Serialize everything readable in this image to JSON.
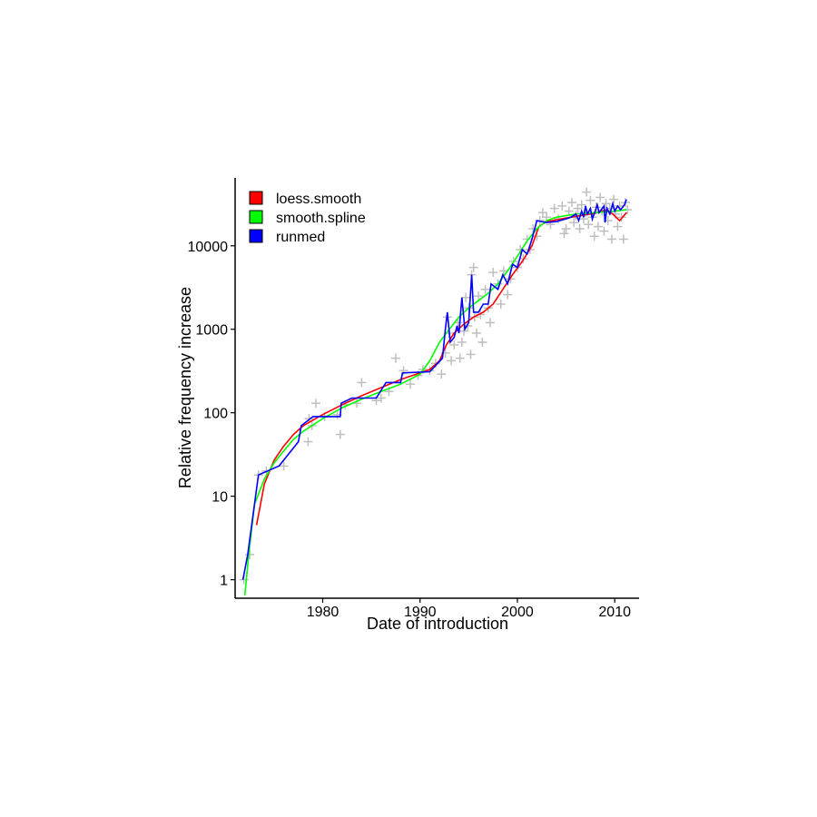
{
  "chart_data": {
    "type": "line",
    "title": "",
    "xlabel": "Date of introduction",
    "ylabel": "Relative frequency increase",
    "xlim": [
      1971,
      2012.5
    ],
    "ylim": [
      0.6,
      65000
    ],
    "y_scale": "log",
    "x_ticks": [
      1980,
      1990,
      2000,
      2010
    ],
    "x_tick_labels": [
      "1980",
      "1990",
      "2000",
      "2010"
    ],
    "y_ticks": [
      1,
      10,
      100,
      1000,
      10000
    ],
    "y_tick_labels": [
      "1",
      "10",
      "100",
      "1000",
      "10000"
    ],
    "grid": false,
    "legend_position": "top-left",
    "point_color": "#bebebe",
    "scatter_points": [
      [
        1971.9,
        1.0
      ],
      [
        1972.5,
        2.0
      ],
      [
        1973.4,
        18
      ],
      [
        1974.2,
        20
      ],
      [
        1976.0,
        23
      ],
      [
        1978.5,
        45
      ],
      [
        1978.6,
        85
      ],
      [
        1978.9,
        70
      ],
      [
        1979.3,
        130
      ],
      [
        1980.2,
        90
      ],
      [
        1981.5,
        95
      ],
      [
        1981.8,
        55
      ],
      [
        1982.3,
        125
      ],
      [
        1983.5,
        130
      ],
      [
        1984.0,
        230
      ],
      [
        1985.5,
        140
      ],
      [
        1986.0,
        150
      ],
      [
        1986.8,
        180
      ],
      [
        1987.5,
        450
      ],
      [
        1988.3,
        320
      ],
      [
        1989.0,
        220
      ],
      [
        1989.8,
        280
      ],
      [
        1990.3,
        330
      ],
      [
        1991.0,
        320
      ],
      [
        1991.6,
        390
      ],
      [
        1992.2,
        290
      ],
      [
        1992.6,
        520
      ],
      [
        1992.8,
        1400
      ],
      [
        1993.0,
        900
      ],
      [
        1993.2,
        420
      ],
      [
        1993.5,
        650
      ],
      [
        1993.9,
        1200
      ],
      [
        1994.1,
        450
      ],
      [
        1994.3,
        700
      ],
      [
        1994.5,
        950
      ],
      [
        1994.7,
        2400
      ],
      [
        1994.9,
        1100
      ],
      [
        1995.0,
        1800
      ],
      [
        1995.2,
        500
      ],
      [
        1995.3,
        4500
      ],
      [
        1995.5,
        5500
      ],
      [
        1995.6,
        1400
      ],
      [
        1995.8,
        900
      ],
      [
        1996.0,
        2500
      ],
      [
        1996.2,
        1500
      ],
      [
        1996.4,
        700
      ],
      [
        1996.7,
        3000
      ],
      [
        1997.0,
        1800
      ],
      [
        1997.2,
        1200
      ],
      [
        1997.5,
        4800
      ],
      [
        1998.0,
        3500
      ],
      [
        1998.3,
        2000
      ],
      [
        1998.6,
        5000
      ],
      [
        1999.0,
        2600
      ],
      [
        1999.3,
        4000
      ],
      [
        1999.6,
        6500
      ],
      [
        2000.0,
        5500
      ],
      [
        2000.3,
        9000
      ],
      [
        2000.6,
        7000
      ],
      [
        2001.0,
        12000
      ],
      [
        2001.3,
        9000
      ],
      [
        2001.6,
        16000
      ],
      [
        2002.0,
        13000
      ],
      [
        2002.3,
        20000
      ],
      [
        2002.6,
        25000
      ],
      [
        2003.0,
        22000
      ],
      [
        2003.4,
        18000
      ],
      [
        2003.8,
        28000
      ],
      [
        2004.2,
        21000
      ],
      [
        2004.6,
        30000
      ],
      [
        2004.8,
        14000
      ],
      [
        2005.0,
        16000
      ],
      [
        2005.3,
        26000
      ],
      [
        2005.6,
        33000
      ],
      [
        2005.8,
        19000
      ],
      [
        2006.0,
        23000
      ],
      [
        2006.2,
        28000
      ],
      [
        2006.4,
        16000
      ],
      [
        2006.6,
        31000
      ],
      [
        2006.8,
        21000
      ],
      [
        2007.0,
        25000
      ],
      [
        2007.1,
        44000
      ],
      [
        2007.3,
        18000
      ],
      [
        2007.5,
        35000
      ],
      [
        2007.7,
        22000
      ],
      [
        2007.9,
        13000
      ],
      [
        2008.1,
        29000
      ],
      [
        2008.3,
        17000
      ],
      [
        2008.5,
        38000
      ],
      [
        2008.7,
        26000
      ],
      [
        2008.9,
        15000
      ],
      [
        2009.1,
        32000
      ],
      [
        2009.3,
        20000
      ],
      [
        2009.5,
        28000
      ],
      [
        2009.7,
        12000
      ],
      [
        2009.9,
        36000
      ],
      [
        2010.1,
        24000
      ],
      [
        2010.3,
        17000
      ],
      [
        2010.5,
        30000
      ],
      [
        2010.7,
        22000
      ],
      [
        2010.9,
        12000
      ],
      [
        2011.1,
        33000
      ],
      [
        2011.3,
        27000
      ]
    ],
    "series": [
      {
        "name": "loess.smooth",
        "color": "#ff0000",
        "points": [
          [
            1973.2,
            4.5
          ],
          [
            1974.0,
            14
          ],
          [
            1975.0,
            27
          ],
          [
            1976.0,
            40
          ],
          [
            1977.0,
            55
          ],
          [
            1978.0,
            70
          ],
          [
            1980.0,
            95
          ],
          [
            1982.0,
            125
          ],
          [
            1984.0,
            160
          ],
          [
            1986.0,
            200
          ],
          [
            1988.0,
            250
          ],
          [
            1990.0,
            300
          ],
          [
            1991.0,
            330
          ],
          [
            1992.0,
            420
          ],
          [
            1992.7,
            650
          ],
          [
            1993.5,
            900
          ],
          [
            1994.5,
            1150
          ],
          [
            1995.5,
            1400
          ],
          [
            1996.5,
            1600
          ],
          [
            1997.5,
            2000
          ],
          [
            1998.5,
            3000
          ],
          [
            1999.5,
            4500
          ],
          [
            2000.5,
            6500
          ],
          [
            2001.5,
            10000
          ],
          [
            2002.2,
            17000
          ],
          [
            2003.0,
            19500
          ],
          [
            2004.0,
            20500
          ],
          [
            2005.0,
            21500
          ],
          [
            2006.0,
            22500
          ],
          [
            2007.0,
            23500
          ],
          [
            2008.0,
            24500
          ],
          [
            2008.6,
            26000
          ],
          [
            2009.2,
            27000
          ],
          [
            2009.8,
            24000
          ],
          [
            2010.5,
            20000
          ],
          [
            2011.2,
            25000
          ]
        ]
      },
      {
        "name": "smooth.spline",
        "color": "#00ff00",
        "points": [
          [
            1972.0,
            0.65
          ],
          [
            1972.4,
            2.0
          ],
          [
            1973.0,
            8
          ],
          [
            1974.0,
            16
          ],
          [
            1975.0,
            25
          ],
          [
            1976.0,
            35
          ],
          [
            1977.0,
            48
          ],
          [
            1978.0,
            60
          ],
          [
            1980.0,
            85
          ],
          [
            1982.0,
            115
          ],
          [
            1984.0,
            145
          ],
          [
            1986.0,
            180
          ],
          [
            1988.0,
            220
          ],
          [
            1990.0,
            290
          ],
          [
            1991.0,
            420
          ],
          [
            1992.0,
            700
          ],
          [
            1993.0,
            1000
          ],
          [
            1994.0,
            1400
          ],
          [
            1995.0,
            1800
          ],
          [
            1996.0,
            2200
          ],
          [
            1997.0,
            2700
          ],
          [
            1998.0,
            3500
          ],
          [
            1999.0,
            5000
          ],
          [
            2000.0,
            7500
          ],
          [
            2001.0,
            11500
          ],
          [
            2002.0,
            16000
          ],
          [
            2003.0,
            20000
          ],
          [
            2004.0,
            22000
          ],
          [
            2005.0,
            23000
          ],
          [
            2006.0,
            24000
          ],
          [
            2007.0,
            24500
          ],
          [
            2008.0,
            25000
          ],
          [
            2009.0,
            25500
          ],
          [
            2010.0,
            26000
          ],
          [
            2011.2,
            27000
          ]
        ]
      },
      {
        "name": "runmed",
        "color": "#0000ff",
        "points": [
          [
            1971.8,
            1.0
          ],
          [
            1972.3,
            2.0
          ],
          [
            1973.4,
            18
          ],
          [
            1975.5,
            23
          ],
          [
            1977.5,
            45
          ],
          [
            1977.8,
            70
          ],
          [
            1979.0,
            90
          ],
          [
            1981.8,
            90
          ],
          [
            1981.9,
            130
          ],
          [
            1983.0,
            150
          ],
          [
            1985.5,
            150
          ],
          [
            1986.5,
            230
          ],
          [
            1988.0,
            230
          ],
          [
            1988.2,
            300
          ],
          [
            1991.0,
            310
          ],
          [
            1992.3,
            450
          ],
          [
            1992.6,
            1000
          ],
          [
            1992.8,
            1600
          ],
          [
            1993.1,
            700
          ],
          [
            1993.5,
            800
          ],
          [
            1993.8,
            1100
          ],
          [
            1994.0,
            900
          ],
          [
            1994.3,
            2400
          ],
          [
            1994.6,
            1000
          ],
          [
            1995.0,
            1200
          ],
          [
            1995.3,
            4500
          ],
          [
            1995.5,
            1600
          ],
          [
            1996.0,
            1600
          ],
          [
            1996.5,
            2000
          ],
          [
            1997.0,
            2000
          ],
          [
            1997.3,
            3500
          ],
          [
            1998.0,
            3000
          ],
          [
            1998.5,
            4500
          ],
          [
            1999.0,
            3500
          ],
          [
            1999.5,
            6000
          ],
          [
            2000.0,
            5500
          ],
          [
            2000.5,
            9000
          ],
          [
            2001.0,
            8000
          ],
          [
            2001.5,
            12000
          ],
          [
            2002.0,
            20000
          ],
          [
            2003.0,
            19000
          ],
          [
            2004.0,
            19500
          ],
          [
            2005.0,
            21000
          ],
          [
            2005.5,
            22000
          ],
          [
            2006.0,
            24000
          ],
          [
            2006.3,
            20000
          ],
          [
            2006.6,
            26000
          ],
          [
            2006.8,
            22000
          ],
          [
            2007.0,
            30000
          ],
          [
            2007.2,
            24000
          ],
          [
            2007.5,
            28000
          ],
          [
            2007.7,
            21000
          ],
          [
            2008.0,
            26000
          ],
          [
            2008.2,
            31000
          ],
          [
            2008.4,
            25000
          ],
          [
            2008.6,
            27000
          ],
          [
            2008.9,
            30000
          ],
          [
            2009.0,
            19000
          ],
          [
            2009.2,
            28000
          ],
          [
            2009.5,
            24000
          ],
          [
            2009.8,
            32000
          ],
          [
            2010.0,
            26000
          ],
          [
            2010.3,
            30000
          ],
          [
            2010.6,
            27000
          ],
          [
            2011.0,
            31000
          ],
          [
            2011.2,
            36000
          ]
        ]
      }
    ]
  }
}
